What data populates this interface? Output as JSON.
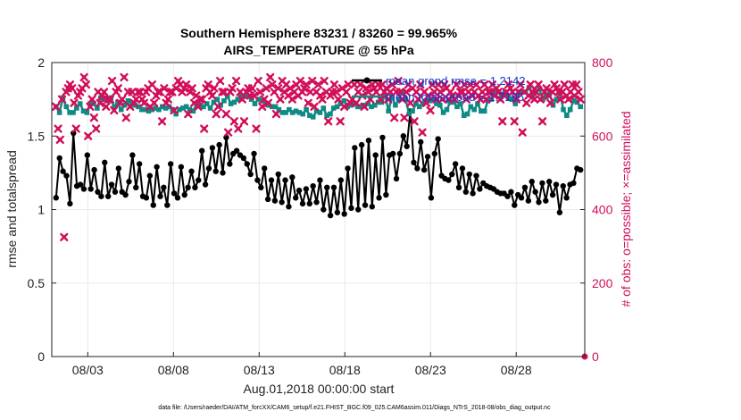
{
  "chart_data": {
    "type": "line",
    "title": "Southern Hemisphere 83231 / 83260 = 99.965%",
    "subtitle": "AIRS_TEMPERATURE @ 55 hPa",
    "xlabel": "Aug.01,2018 00:00:00 start",
    "ylabel": "rmse and totalspread",
    "ylabel_right": "# of obs: o=possible; ×=assimilated",
    "ylim": [
      0,
      2
    ],
    "ylim_right": [
      0,
      800
    ],
    "xlim": [
      0.4,
      31.5
    ],
    "x_ticks": [
      2.5,
      7.5,
      12.5,
      17.5,
      22.5,
      27.5
    ],
    "x_tick_labels": [
      "08/03",
      "08/08",
      "08/13",
      "08/18",
      "08/23",
      "08/28"
    ],
    "y_ticks": [
      0,
      0.5,
      1,
      1.5,
      2
    ],
    "y_tick_labels": [
      "0",
      "0.5",
      "1",
      "1.5",
      "2"
    ],
    "y_ticks_right": [
      0,
      200,
      400,
      600,
      800
    ],
    "y_tick_labels_right": [
      "0",
      "200",
      "400",
      "600",
      "800"
    ],
    "grid": true,
    "legend_position": "top-right",
    "legend": [
      "mean grand rmse = 1.2142",
      "mean totalspread = 1.7195"
    ],
    "footnote": "data file: /Users/raeder/DAI/ATM_forcXX/CAM6_setup/f.e21.FHIST_BGC.f09_025.CAM6assim.011/Diags_NTrS_2018-08/obs_diag_output.nc",
    "series": [
      {
        "name": "rmse",
        "axis": "left",
        "color": "#000000",
        "values": [
          1.08,
          1.35,
          1.26,
          1.23,
          1.04,
          1.52,
          1.16,
          1.17,
          1.14,
          1.37,
          1.14,
          1.27,
          1.12,
          1.09,
          1.32,
          1.09,
          1.17,
          1.12,
          1.28,
          1.12,
          1.1,
          1.19,
          1.37,
          1.15,
          1.31,
          1.09,
          1.08,
          1.23,
          1.03,
          1.29,
          1.09,
          1.15,
          1.03,
          1.31,
          1.11,
          1.08,
          1.29,
          1.1,
          1.15,
          1.26,
          1.15,
          1.2,
          1.4,
          1.17,
          1.28,
          1.42,
          1.26,
          1.44,
          1.25,
          1.49,
          1.31,
          1.38,
          1.4,
          1.37,
          1.35,
          1.31,
          1.24,
          1.38,
          1.2,
          1.15,
          1.28,
          1.07,
          1.2,
          1.06,
          1.24,
          1.05,
          1.2,
          1.02,
          1.22,
          1.08,
          1.13,
          1.04,
          1.14,
          1.04,
          1.16,
          1.05,
          1.2,
          1.0,
          1.15,
          0.96,
          1.15,
          0.98,
          1.2,
          0.97,
          1.28,
          1.01,
          1.42,
          1.0,
          1.44,
          1.03,
          1.47,
          1.02,
          1.37,
          1.08,
          1.49,
          1.1,
          1.37,
          1.38,
          1.21,
          1.38,
          1.5,
          1.43,
          1.67,
          1.32,
          1.28,
          1.46,
          1.27,
          1.36,
          1.08,
          1.38,
          1.48,
          1.23,
          1.21,
          1.2,
          1.24,
          1.31,
          1.15,
          1.28,
          1.12,
          1.24,
          1.11,
          1.23,
          1.14,
          1.18,
          1.16,
          1.15,
          1.14,
          1.12,
          1.11,
          1.11,
          1.09,
          1.12,
          1.03,
          1.1,
          1.08,
          1.15,
          1.06,
          1.19,
          1.12,
          1.05,
          1.18,
          1.06,
          1.19,
          1.1,
          1.17,
          0.98,
          1.16,
          1.08,
          1.17,
          1.18,
          1.28,
          1.27
        ]
      },
      {
        "name": "totalspread",
        "axis": "left",
        "color": "#0f8a84",
        "values": [
          1.7,
          1.66,
          1.76,
          1.7,
          1.66,
          1.66,
          1.69,
          1.72,
          1.67,
          1.66,
          1.72,
          1.72,
          1.69,
          1.76,
          1.75,
          1.74,
          1.76,
          1.7,
          1.73,
          1.68,
          1.71,
          1.74,
          1.72,
          1.71,
          1.7,
          1.68,
          1.68,
          1.67,
          1.68,
          1.69,
          1.68,
          1.7,
          1.69,
          1.7,
          1.68,
          1.65,
          1.68,
          1.69,
          1.7,
          1.68,
          1.67,
          1.72,
          1.71,
          1.7,
          1.72,
          1.69,
          1.73,
          1.75,
          1.71,
          1.74,
          1.77,
          1.72,
          1.73,
          1.75,
          1.77,
          1.77,
          1.77,
          1.75,
          1.72,
          1.75,
          1.74,
          1.72,
          1.71,
          1.7,
          1.7,
          1.68,
          1.66,
          1.66,
          1.68,
          1.66,
          1.67,
          1.66,
          1.65,
          1.68,
          1.64,
          1.63,
          1.67,
          1.66,
          1.69,
          1.64,
          1.65,
          1.69,
          1.7,
          1.72,
          1.74,
          1.7,
          1.71,
          1.72,
          1.7,
          1.7,
          1.71,
          1.72,
          1.7,
          1.71,
          1.73,
          1.73,
          1.78,
          1.67,
          1.77,
          1.71,
          1.75,
          1.8,
          1.75,
          1.65,
          1.67,
          1.72,
          1.7,
          1.72,
          1.74,
          1.74,
          1.75,
          1.72,
          1.71,
          1.66,
          1.68,
          1.73,
          1.73,
          1.7,
          1.72,
          1.64,
          1.65,
          1.7,
          1.68,
          1.72,
          1.67,
          1.67,
          1.74,
          1.75,
          1.79,
          1.8,
          1.77,
          1.8,
          1.76,
          1.75,
          1.72,
          1.8,
          1.8,
          1.8,
          1.83,
          1.78,
          1.8,
          1.82,
          1.75,
          1.77,
          1.79,
          1.71,
          1.75,
          1.8,
          1.68,
          1.64,
          1.68,
          1.74,
          1.73,
          1.7
        ]
      },
      {
        "name": "obs_assimilated",
        "axis": "right",
        "color": "#d10f5a",
        "values": [
          680,
          620,
          590,
          700,
          325,
          720,
          730,
          740,
          730,
          690,
          620,
          710,
          720,
          730,
          760,
          740,
          600,
          680,
          700,
          650,
          620,
          720,
          690,
          710,
          720,
          680,
          700,
          700,
          750,
          670,
          720,
          730,
          690,
          700,
          760,
          650,
          720,
          680,
          720,
          690,
          700,
          720,
          720,
          700,
          690,
          720,
          730,
          680,
          740,
          690,
          710,
          720,
          720,
          640,
          730,
          690,
          700,
          720,
          720,
          670,
          730,
          750,
          740,
          720,
          730,
          740,
          660,
          720,
          730,
          690,
          710,
          680,
          700,
          700,
          620,
          730,
          740,
          720,
          710,
          730,
          660,
          680,
          750,
          720,
          720,
          660,
          610,
          720,
          730,
          640,
          750,
          620,
          720,
          700,
          640,
          720,
          730,
          710,
          730,
          710,
          620,
          750,
          720,
          680,
          700,
          730,
          690,
          760,
          740,
          720,
          660,
          730,
          700,
          750,
          720,
          740,
          710,
          730,
          700,
          720,
          740,
          710,
          750,
          720,
          730,
          740,
          690,
          720,
          750,
          680,
          720,
          740,
          710,
          700,
          750,
          720,
          640,
          710,
          720,
          740,
          720,
          700,
          640,
          730,
          680,
          720,
          740,
          690,
          700,
          740,
          690,
          720,
          740,
          710,
          680,
          730,
          720,
          700,
          740,
          730,
          720,
          740,
          700,
          740,
          720,
          730,
          700,
          720,
          740,
          650,
          720,
          750,
          720,
          700,
          650,
          720,
          740,
          690,
          730,
          640,
          720,
          700,
          740,
          610,
          720,
          690,
          710,
          670,
          740,
          720,
          700,
          740,
          720,
          700,
          740,
          730,
          700,
          720,
          710,
          700,
          740,
          710,
          720,
          720,
          740,
          700,
          720,
          740,
          710,
          720,
          740,
          710,
          700,
          720,
          740,
          700,
          720,
          720,
          740,
          710,
          730,
          720,
          700,
          640,
          710,
          720,
          740,
          730,
          720,
          640,
          700,
          720,
          740,
          610,
          720,
          690,
          710,
          740,
          720,
          700,
          720,
          740,
          700,
          640,
          720,
          730,
          710,
          690,
          720,
          740,
          730,
          720,
          700,
          720,
          740,
          710,
          700,
          720,
          740,
          710,
          740,
          720,
          700
        ]
      }
    ],
    "obs_possible_end": 0
  }
}
